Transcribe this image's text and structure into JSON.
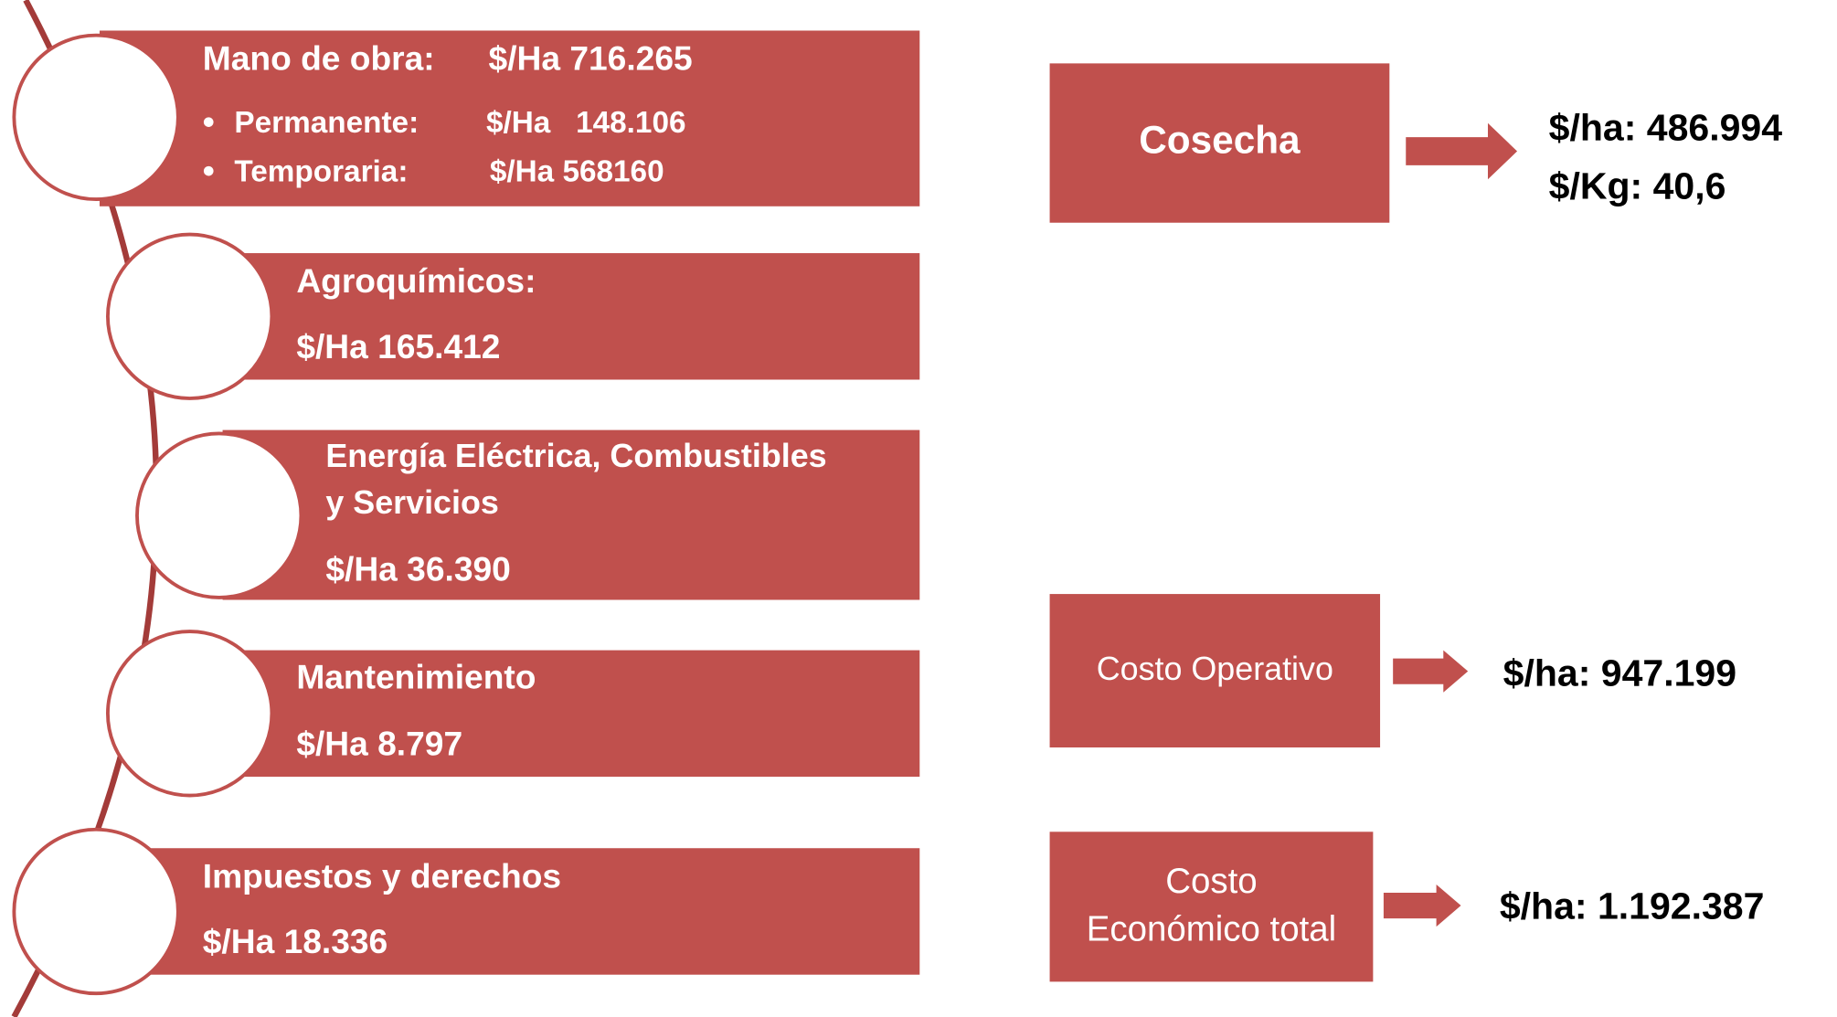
{
  "items": [
    {
      "title": "Mano de obra:",
      "value": "$/Ha 716.265",
      "bullets": [
        {
          "label": "Permanente:",
          "value": "$/Ha   148.106"
        },
        {
          "label": "Temporaria:",
          "value": "$/Ha 568160"
        }
      ]
    },
    {
      "title": [
        "Agroquímicos:"
      ],
      "value": "$/Ha 165.412"
    },
    {
      "title": [
        "Energía Eléctrica, Combustibles",
        "y Servicios"
      ],
      "value": "$/Ha 36.390"
    },
    {
      "title": [
        "Mantenimiento"
      ],
      "value": "$/Ha 8.797"
    },
    {
      "title": [
        "Impuestos y derechos"
      ],
      "value": "$/Ha 18.336"
    }
  ],
  "results": [
    {
      "label": [
        "Cosecha"
      ],
      "values": [
        "$/ha: 486.994",
        "$/Kg: 40,6"
      ]
    },
    {
      "label": [
        "Costo Operativo"
      ],
      "values": [
        "$/ha: 947.199"
      ]
    },
    {
      "label": [
        "Costo",
        "Económico total"
      ],
      "values": [
        "$/ha: 1.192.387"
      ]
    }
  ]
}
